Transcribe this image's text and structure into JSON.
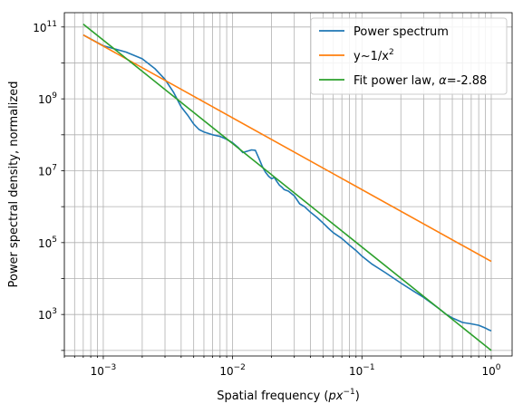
{
  "chart_data": {
    "type": "line",
    "title": "",
    "xlabel": "Spatial frequency (px⁻¹)",
    "xlabel_parts": {
      "text": "Spatial frequency (",
      "var": "px",
      "exp": "−1",
      "close": ")"
    },
    "ylabel": "Power spectral density, normalized",
    "xscale": "log",
    "yscale": "log",
    "xlim": [
      0.0005,
      1.45
    ],
    "ylim": [
      70,
      250000000000
    ],
    "grid": "both-major-minor-x",
    "legend_position": "top-right",
    "x_ticks": [
      {
        "value": 0.001,
        "base": "10",
        "exp": "−3"
      },
      {
        "value": 0.01,
        "base": "10",
        "exp": "−2"
      },
      {
        "value": 0.1,
        "base": "10",
        "exp": "−1"
      },
      {
        "value": 1,
        "base": "10",
        "exp": "0"
      }
    ],
    "y_ticks": [
      {
        "value": 1000,
        "base": "10",
        "exp": "3"
      },
      {
        "value": 100000,
        "base": "10",
        "exp": "5"
      },
      {
        "value": 10000000,
        "base": "10",
        "exp": "7"
      },
      {
        "value": 1000000000,
        "base": "10",
        "exp": "9"
      },
      {
        "value": 100000000000,
        "base": "10",
        "exp": "11"
      }
    ],
    "series": [
      {
        "name": "Power spectrum",
        "color": "#1f77b4",
        "x": [
          0.0007,
          0.001,
          0.0015,
          0.002,
          0.0025,
          0.003,
          0.0035,
          0.004,
          0.0045,
          0.005,
          0.0055,
          0.006,
          0.007,
          0.008,
          0.009,
          0.01,
          0.011,
          0.012,
          0.013,
          0.014,
          0.015,
          0.016,
          0.017,
          0.018,
          0.019,
          0.02,
          0.021,
          0.022,
          0.023,
          0.024,
          0.025,
          0.027,
          0.03,
          0.033,
          0.036,
          0.04,
          0.045,
          0.05,
          0.055,
          0.06,
          0.07,
          0.08,
          0.09,
          0.1,
          0.12,
          0.15,
          0.2,
          0.25,
          0.3,
          0.35,
          0.4,
          0.45,
          0.5,
          0.6,
          0.7,
          0.8,
          0.9,
          0.95,
          1.0
        ],
        "y": [
          60000000000,
          30000000000,
          20000000000,
          13000000000,
          7000000000,
          3500000000,
          1500000000,
          600000000,
          350000000,
          200000000,
          140000000,
          120000000,
          100000000,
          90000000,
          75000000,
          60000000,
          45000000,
          32000000,
          35000000,
          38000000,
          37000000,
          22000000,
          13000000,
          9000000,
          7000000,
          6000000,
          6500000,
          5000000,
          4000000,
          3500000,
          3000000,
          2700000,
          2000000,
          1200000,
          1000000,
          700000,
          500000,
          350000,
          250000,
          190000,
          130000,
          85000,
          60000,
          42000,
          25000,
          15000,
          7500,
          4500,
          3000,
          2000,
          1400,
          1000,
          800,
          600,
          550,
          500,
          420,
          380,
          350
        ]
      },
      {
        "name": "y~1/x²",
        "name_parts": {
          "text": "y~1/x",
          "sup": "2"
        },
        "color": "#ff7f0e",
        "x": [
          0.0007,
          1.0
        ],
        "y": [
          60000000000,
          30000
        ]
      },
      {
        "name": "Fit power law, α=-2.88",
        "name_parts": {
          "text": "Fit power law, ",
          "greek": "α",
          "rest": "=-2.88"
        },
        "color": "#2ca02c",
        "x": [
          0.0007,
          1.0
        ],
        "y": [
          120000000000,
          100
        ]
      }
    ]
  }
}
